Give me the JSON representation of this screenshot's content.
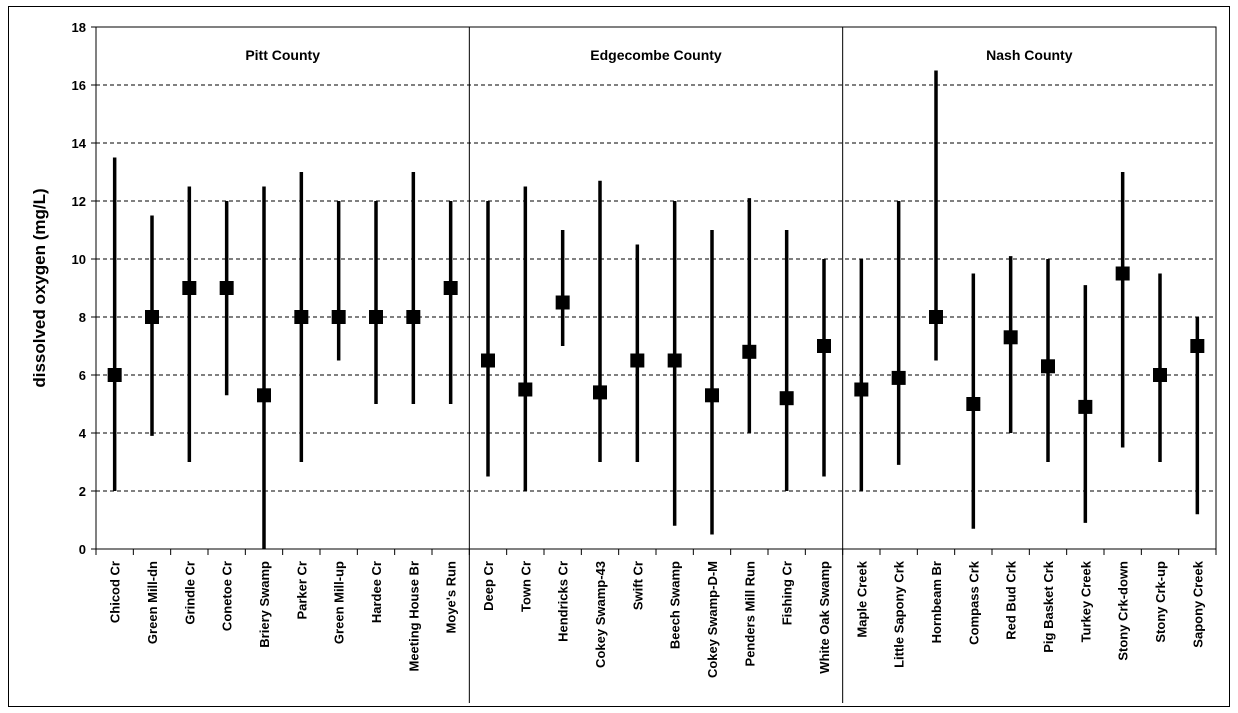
{
  "chart_data": {
    "type": "range",
    "ylabel": "dissolved oxygen (mg/L)",
    "ylim": [
      0,
      18
    ],
    "yticks": [
      0,
      2,
      4,
      6,
      8,
      10,
      12,
      14,
      16,
      18
    ],
    "grid": true,
    "groups": [
      {
        "name": "Pitt County",
        "sites": [
          {
            "name": "Chicod Cr",
            "min": 2.0,
            "max": 13.5,
            "value": 6.0
          },
          {
            "name": "Green Mill-dn",
            "min": 3.9,
            "max": 11.5,
            "value": 8.0
          },
          {
            "name": "Grindle Cr",
            "min": 3.0,
            "max": 12.5,
            "value": 9.0
          },
          {
            "name": "Conetoe Cr",
            "min": 5.3,
            "max": 12.0,
            "value": 9.0
          },
          {
            "name": "Briery Swamp",
            "min": 0.0,
            "max": 12.5,
            "value": 5.3
          },
          {
            "name": "Parker Cr",
            "min": 3.0,
            "max": 13.0,
            "value": 8.0
          },
          {
            "name": "Green Mill-up",
            "min": 6.5,
            "max": 12.0,
            "value": 8.0
          },
          {
            "name": "Hardee Cr",
            "min": 5.0,
            "max": 12.0,
            "value": 8.0
          },
          {
            "name": "Meeting House Br",
            "min": 5.0,
            "max": 13.0,
            "value": 8.0
          },
          {
            "name": "Moye's Run",
            "min": 5.0,
            "max": 12.0,
            "value": 9.0
          }
        ]
      },
      {
        "name": "Edgecombe County",
        "sites": [
          {
            "name": "Deep Cr",
            "min": 2.5,
            "max": 12.0,
            "value": 6.5
          },
          {
            "name": "Town Cr",
            "min": 2.0,
            "max": 12.5,
            "value": 5.5
          },
          {
            "name": "Hendricks Cr",
            "min": 7.0,
            "max": 11.0,
            "value": 8.5
          },
          {
            "name": "Cokey Swamp-43",
            "min": 3.0,
            "max": 12.7,
            "value": 5.4
          },
          {
            "name": "Swift Cr",
            "min": 3.0,
            "max": 10.5,
            "value": 6.5
          },
          {
            "name": "Beech Swamp",
            "min": 0.8,
            "max": 12.0,
            "value": 6.5
          },
          {
            "name": "Cokey Swamp-D-M",
            "min": 0.5,
            "max": 11.0,
            "value": 5.3
          },
          {
            "name": "Penders Mill Run",
            "min": 4.0,
            "max": 12.1,
            "value": 6.8
          },
          {
            "name": "Fishing Cr",
            "min": 2.0,
            "max": 11.0,
            "value": 5.2
          },
          {
            "name": "White Oak Swamp",
            "min": 2.5,
            "max": 10.0,
            "value": 7.0
          }
        ]
      },
      {
        "name": "Nash County",
        "sites": [
          {
            "name": "Maple Creek",
            "min": 2.0,
            "max": 10.0,
            "value": 5.5
          },
          {
            "name": "Little Sapony Crk",
            "min": 2.9,
            "max": 12.0,
            "value": 5.9
          },
          {
            "name": "Hornbeam Br",
            "min": 6.5,
            "max": 16.5,
            "value": 8.0
          },
          {
            "name": "Compass Crk",
            "min": 0.7,
            "max": 9.5,
            "value": 5.0
          },
          {
            "name": "Red Bud Crk",
            "min": 4.0,
            "max": 10.1,
            "value": 7.3
          },
          {
            "name": "Pig Basket Crk",
            "min": 3.0,
            "max": 10.0,
            "value": 6.3
          },
          {
            "name": "Turkey Creek",
            "min": 0.9,
            "max": 9.1,
            "value": 4.9
          },
          {
            "name": "Stony Crk-down",
            "min": 3.5,
            "max": 13.0,
            "value": 9.5
          },
          {
            "name": "Stony Crk-up",
            "min": 3.0,
            "max": 9.5,
            "value": 6.0
          },
          {
            "name": "Sapony Creek",
            "min": 1.2,
            "max": 8.0,
            "value": 7.0
          }
        ]
      }
    ]
  }
}
